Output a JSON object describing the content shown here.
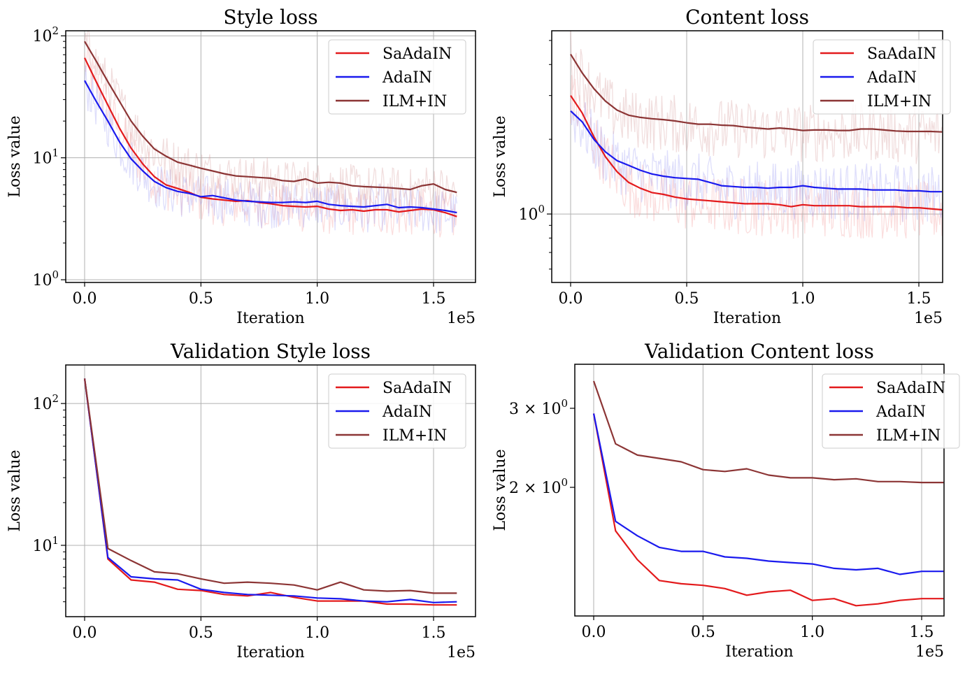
{
  "chart_data": [
    {
      "id": "style",
      "type": "line",
      "title": "Style loss",
      "xlabel": "Iteration",
      "ylabel": "Loss value",
      "x_offset_label": "1e5",
      "yscale": "log",
      "xlim": [
        -8000,
        168000
      ],
      "ylim": [
        0.95,
        110
      ],
      "xticks": [
        0,
        50000,
        100000,
        150000
      ],
      "xtick_labels": [
        "0.0",
        "0.5",
        "1.0",
        "1.5"
      ],
      "yticks": [
        1,
        10,
        100
      ],
      "ytick_labels": [
        [
          "10",
          "0"
        ],
        [
          "10",
          "1"
        ],
        [
          "10",
          "2"
        ]
      ],
      "grid": true,
      "legend_position": "top-right",
      "has_raw_noise": true,
      "x": [
        0,
        5000,
        10000,
        15000,
        20000,
        25000,
        30000,
        35000,
        40000,
        45000,
        50000,
        55000,
        60000,
        65000,
        70000,
        75000,
        80000,
        85000,
        90000,
        95000,
        100000,
        105000,
        110000,
        115000,
        120000,
        125000,
        130000,
        135000,
        140000,
        145000,
        150000,
        155000,
        160000
      ],
      "series": [
        {
          "name": "SaAdaIN",
          "color": "#e31a1c",
          "values": [
            66,
            42,
            27,
            17.5,
            12,
            8.9,
            7.0,
            6.0,
            5.6,
            5.2,
            4.75,
            4.6,
            4.5,
            4.4,
            4.45,
            4.3,
            4.2,
            4.05,
            4.0,
            3.95,
            4.0,
            3.8,
            3.7,
            3.75,
            3.65,
            3.75,
            3.75,
            3.6,
            3.7,
            3.8,
            3.75,
            3.55,
            3.3
          ]
        },
        {
          "name": "AdaIN",
          "color": "#1a1aee",
          "values": [
            43,
            29,
            20,
            13.5,
            9.8,
            7.8,
            6.4,
            5.7,
            5.3,
            5.1,
            4.8,
            4.9,
            4.7,
            4.5,
            4.4,
            4.35,
            4.3,
            4.3,
            4.35,
            4.3,
            4.4,
            4.15,
            4.05,
            4.0,
            3.95,
            4.05,
            4.15,
            3.9,
            3.95,
            3.9,
            3.8,
            3.7,
            3.55
          ]
        },
        {
          "name": "ILM+IN",
          "color": "#8c3535",
          "values": [
            90,
            62,
            42,
            29,
            20,
            15,
            11.8,
            10.3,
            9.2,
            8.7,
            8.2,
            7.8,
            7.4,
            7.1,
            7.0,
            6.9,
            6.8,
            6.5,
            6.4,
            6.7,
            6.2,
            6.3,
            6.2,
            5.9,
            5.8,
            5.75,
            5.7,
            5.6,
            5.5,
            5.9,
            6.1,
            5.5,
            5.2
          ]
        }
      ]
    },
    {
      "id": "content",
      "type": "line",
      "title": "Content loss",
      "xlabel": "Iteration",
      "ylabel": "Loss value",
      "x_offset_label": "1e5",
      "yscale": "log",
      "xlim": [
        -8000,
        168000
      ],
      "ylim": [
        0.53,
        5.47
      ],
      "xticks": [
        0,
        50000,
        100000,
        150000
      ],
      "xtick_labels": [
        "0.0",
        "0.5",
        "1.0",
        "1.5"
      ],
      "yticks": [
        1
      ],
      "ytick_labels": [
        [
          "10",
          "0"
        ]
      ],
      "minor_yticks": [
        0.6,
        0.7,
        0.8,
        0.9,
        2,
        3,
        4,
        5
      ],
      "grid": true,
      "legend_position": "top-right",
      "has_raw_noise": true,
      "x": [
        0,
        5000,
        10000,
        15000,
        20000,
        25000,
        30000,
        35000,
        40000,
        45000,
        50000,
        55000,
        60000,
        65000,
        70000,
        75000,
        80000,
        85000,
        90000,
        95000,
        100000,
        105000,
        110000,
        115000,
        120000,
        125000,
        130000,
        135000,
        140000,
        145000,
        150000,
        155000,
        160000
      ],
      "series": [
        {
          "name": "SaAdaIN",
          "color": "#e31a1c",
          "values": [
            3.0,
            2.55,
            2.05,
            1.7,
            1.48,
            1.34,
            1.27,
            1.22,
            1.2,
            1.17,
            1.15,
            1.14,
            1.13,
            1.12,
            1.11,
            1.1,
            1.1,
            1.1,
            1.09,
            1.07,
            1.09,
            1.08,
            1.08,
            1.08,
            1.08,
            1.07,
            1.07,
            1.07,
            1.07,
            1.06,
            1.06,
            1.05,
            1.04
          ]
        },
        {
          "name": "AdaIN",
          "color": "#1a1aee",
          "values": [
            2.6,
            2.35,
            2.0,
            1.78,
            1.64,
            1.57,
            1.5,
            1.45,
            1.42,
            1.4,
            1.39,
            1.38,
            1.34,
            1.3,
            1.29,
            1.28,
            1.28,
            1.27,
            1.28,
            1.28,
            1.3,
            1.28,
            1.27,
            1.26,
            1.26,
            1.26,
            1.25,
            1.25,
            1.25,
            1.24,
            1.24,
            1.23,
            1.23
          ]
        },
        {
          "name": "ILM+IN",
          "color": "#8c3535",
          "values": [
            4.4,
            3.7,
            3.2,
            2.85,
            2.62,
            2.5,
            2.45,
            2.42,
            2.4,
            2.37,
            2.33,
            2.3,
            2.3,
            2.28,
            2.27,
            2.24,
            2.22,
            2.2,
            2.22,
            2.2,
            2.17,
            2.18,
            2.18,
            2.17,
            2.17,
            2.2,
            2.2,
            2.18,
            2.16,
            2.15,
            2.15,
            2.15,
            2.14
          ]
        }
      ]
    },
    {
      "id": "val_style",
      "type": "line",
      "title": "Validation Style loss",
      "xlabel": "Iteration",
      "ylabel": "Loss value",
      "x_offset_label": "1e5",
      "yscale": "log",
      "xlim": [
        -8000,
        168000
      ],
      "ylim": [
        3.14,
        187
      ],
      "xticks": [
        0,
        50000,
        100000,
        150000
      ],
      "xtick_labels": [
        "0.0",
        "0.5",
        "1.0",
        "1.5"
      ],
      "yticks": [
        10,
        100
      ],
      "ytick_labels": [
        [
          "10",
          "1"
        ],
        [
          "10",
          "2"
        ]
      ],
      "grid": true,
      "legend_position": "top-right",
      "has_raw_noise": false,
      "x": [
        0,
        10000,
        20000,
        30000,
        40000,
        50000,
        60000,
        70000,
        80000,
        90000,
        100000,
        110000,
        120000,
        130000,
        140000,
        150000,
        160000
      ],
      "series": [
        {
          "name": "SaAdaIN",
          "color": "#e31a1c",
          "values": [
            150,
            8.0,
            5.7,
            5.5,
            4.9,
            4.8,
            4.5,
            4.4,
            4.65,
            4.3,
            4.05,
            4.05,
            4.05,
            3.85,
            3.85,
            3.8,
            3.8
          ]
        },
        {
          "name": "AdaIN",
          "color": "#1a1aee",
          "values": [
            150,
            8.2,
            6.0,
            5.8,
            5.7,
            4.9,
            4.65,
            4.5,
            4.45,
            4.4,
            4.25,
            4.2,
            4.05,
            4.0,
            4.15,
            3.95,
            4.0
          ]
        },
        {
          "name": "ILM+IN",
          "color": "#8c3535",
          "values": [
            150,
            9.5,
            7.8,
            6.5,
            6.3,
            5.8,
            5.4,
            5.5,
            5.4,
            5.25,
            4.85,
            5.5,
            4.85,
            4.75,
            4.8,
            4.6,
            4.6
          ]
        }
      ]
    },
    {
      "id": "val_content",
      "type": "line",
      "title": "Validation Content loss",
      "xlabel": "Iteration",
      "ylabel": "Loss value",
      "x_offset_label": "1e5",
      "yscale": "log",
      "xlim": [
        -8000,
        168000
      ],
      "ylim": [
        1.034,
        3.76
      ],
      "xticks": [
        0,
        50000,
        100000,
        150000
      ],
      "xtick_labels": [
        "0.0",
        "0.5",
        "1.0",
        "1.5"
      ],
      "yticks": [
        2,
        3
      ],
      "ytick_labels": [
        [
          "2 × 10",
          "0"
        ],
        [
          "3 × 10",
          "0"
        ]
      ],
      "grid": "x-only",
      "legend_position": "top-right",
      "has_raw_noise": false,
      "x": [
        0,
        10000,
        20000,
        30000,
        40000,
        50000,
        60000,
        70000,
        80000,
        90000,
        100000,
        110000,
        120000,
        130000,
        140000,
        150000,
        160000
      ],
      "series": [
        {
          "name": "SaAdaIN",
          "color": "#e31a1c",
          "values": [
            2.92,
            1.6,
            1.38,
            1.24,
            1.22,
            1.21,
            1.19,
            1.15,
            1.17,
            1.18,
            1.12,
            1.13,
            1.09,
            1.1,
            1.12,
            1.13,
            1.13
          ]
        },
        {
          "name": "AdaIN",
          "color": "#1a1aee",
          "values": [
            2.92,
            1.68,
            1.56,
            1.47,
            1.44,
            1.44,
            1.4,
            1.39,
            1.37,
            1.36,
            1.35,
            1.32,
            1.31,
            1.32,
            1.28,
            1.3,
            1.3
          ]
        },
        {
          "name": "ILM+IN",
          "color": "#8c3535",
          "values": [
            3.45,
            2.5,
            2.36,
            2.32,
            2.28,
            2.19,
            2.17,
            2.2,
            2.13,
            2.1,
            2.1,
            2.08,
            2.09,
            2.06,
            2.06,
            2.05,
            2.05
          ]
        }
      ]
    }
  ]
}
